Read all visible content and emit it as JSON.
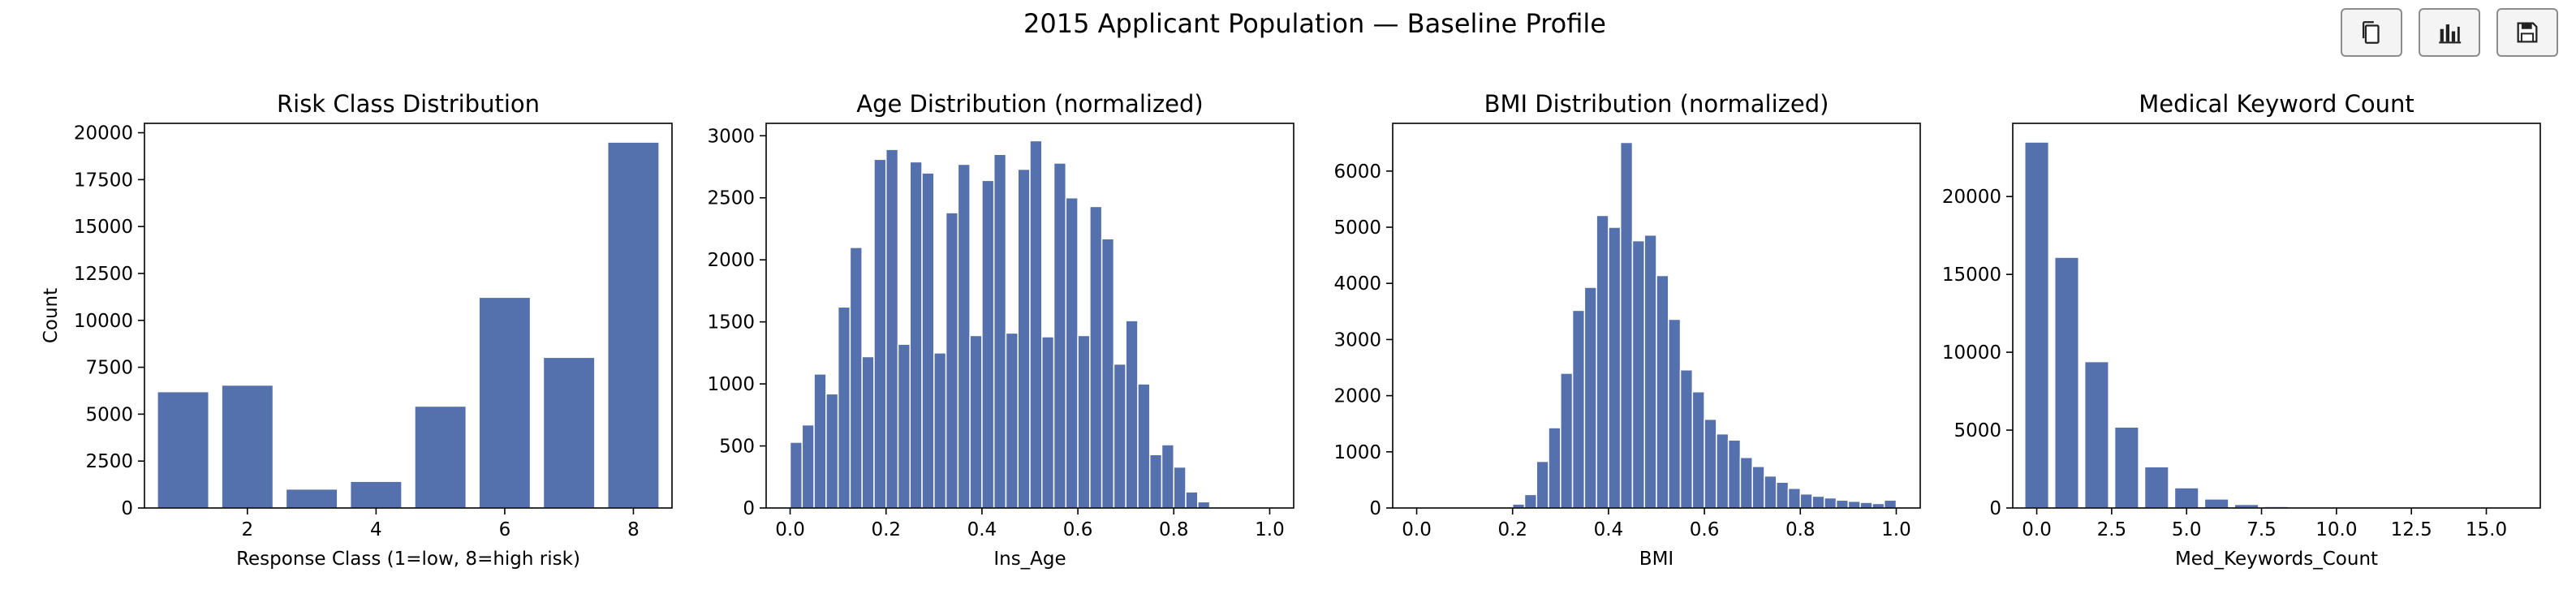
{
  "figure_title": "2015 Applicant Population — Baseline Profile",
  "toolbar": {
    "buttons": [
      {
        "name": "copy-button",
        "icon": "copy-icon"
      },
      {
        "name": "chart-button",
        "icon": "bar-chart-icon"
      },
      {
        "name": "save-button",
        "icon": "save-icon"
      }
    ]
  },
  "colors": {
    "bar": "#5470ad",
    "bar_edge": "#ffffff",
    "axis": "#000000",
    "toolbar_border": "#8c8c8c"
  },
  "chart_data": [
    {
      "type": "bar",
      "title": "Risk Class Distribution",
      "xlabel": "Response Class (1=low, 8=high risk)",
      "ylabel": "Count",
      "x": [
        1,
        2,
        3,
        4,
        5,
        6,
        7,
        8
      ],
      "values": [
        6200,
        6550,
        1010,
        1420,
        5430,
        11230,
        8030,
        19500
      ],
      "bar_width": 0.8,
      "xlim": [
        0.4,
        8.6
      ],
      "ylim": [
        0,
        20500
      ],
      "xticks": [
        2,
        4,
        6,
        8
      ],
      "xtick_labels": [
        "2",
        "4",
        "6",
        "8"
      ],
      "yticks": [
        0,
        2500,
        5000,
        7500,
        10000,
        12500,
        15000,
        17500,
        20000
      ],
      "ytick_labels": [
        "0",
        "2500",
        "5000",
        "7500",
        "10000",
        "12500",
        "15000",
        "17500",
        "20000"
      ]
    },
    {
      "type": "bar",
      "title": "Age Distribution (normalized)",
      "xlabel": "Ins_Age",
      "ylabel": "",
      "x": [
        0.0125,
        0.0375,
        0.0625,
        0.0875,
        0.1125,
        0.1375,
        0.1625,
        0.1875,
        0.2125,
        0.2375,
        0.2625,
        0.2875,
        0.3125,
        0.3375,
        0.3625,
        0.3875,
        0.4125,
        0.4375,
        0.4625,
        0.4875,
        0.5125,
        0.5375,
        0.5625,
        0.5875,
        0.6125,
        0.6375,
        0.6625,
        0.6875,
        0.7125,
        0.7375,
        0.7625,
        0.7875,
        0.8125,
        0.8375,
        0.8625,
        0.8875,
        0.9125,
        0.9375,
        0.9625,
        0.9875
      ],
      "values": [
        530,
        670,
        1080,
        920,
        1620,
        2100,
        1220,
        2810,
        2890,
        1320,
        2790,
        2700,
        1250,
        2380,
        2770,
        1390,
        2640,
        2850,
        1410,
        2730,
        2960,
        1380,
        2780,
        2500,
        1390,
        2430,
        2170,
        1160,
        1510,
        1000,
        430,
        510,
        330,
        130,
        50,
        5,
        3,
        2,
        1,
        0
      ],
      "bar_width": 0.025,
      "xlim": [
        -0.05,
        1.05
      ],
      "ylim": [
        0,
        3100
      ],
      "xticks": [
        0,
        0.2,
        0.4,
        0.6,
        0.8,
        1.0
      ],
      "xtick_labels": [
        "0.0",
        "0.2",
        "0.4",
        "0.6",
        "0.8",
        "1.0"
      ],
      "yticks": [
        0,
        500,
        1000,
        1500,
        2000,
        2500,
        3000
      ],
      "ytick_labels": [
        "0",
        "500",
        "1000",
        "1500",
        "2000",
        "2500",
        "3000"
      ]
    },
    {
      "type": "bar",
      "title": "BMI Distribution (normalized)",
      "xlabel": "BMI",
      "ylabel": "",
      "x": [
        0.0125,
        0.0375,
        0.0625,
        0.0875,
        0.1125,
        0.1375,
        0.1625,
        0.1875,
        0.2125,
        0.2375,
        0.2625,
        0.2875,
        0.3125,
        0.3375,
        0.3625,
        0.3875,
        0.4125,
        0.4375,
        0.4625,
        0.4875,
        0.5125,
        0.5375,
        0.5625,
        0.5875,
        0.6125,
        0.6375,
        0.6625,
        0.6875,
        0.7125,
        0.7375,
        0.7625,
        0.7875,
        0.8125,
        0.8375,
        0.8625,
        0.8875,
        0.9125,
        0.9375,
        0.9625,
        0.9875
      ],
      "values": [
        5,
        0,
        0,
        0,
        0,
        0,
        0,
        0,
        70,
        240,
        830,
        1430,
        2400,
        3520,
        3930,
        5210,
        5000,
        6510,
        4760,
        4860,
        4140,
        3360,
        2460,
        2070,
        1580,
        1320,
        1210,
        900,
        740,
        570,
        460,
        350,
        250,
        210,
        180,
        140,
        120,
        100,
        80,
        140
      ],
      "bar_width": 0.025,
      "xlim": [
        -0.05,
        1.05
      ],
      "ylim": [
        0,
        6850
      ],
      "xticks": [
        0,
        0.2,
        0.4,
        0.6,
        0.8,
        1.0
      ],
      "xtick_labels": [
        "0.0",
        "0.2",
        "0.4",
        "0.6",
        "0.8",
        "1.0"
      ],
      "yticks": [
        0,
        1000,
        2000,
        3000,
        4000,
        5000,
        6000
      ],
      "ytick_labels": [
        "0",
        "1000",
        "2000",
        "3000",
        "4000",
        "5000",
        "6000"
      ]
    },
    {
      "type": "bar",
      "title": "Medical Keyword Count",
      "xlabel": "Med_Keywords_Count",
      "ylabel": "",
      "x": [
        0,
        1,
        2,
        3,
        4,
        5,
        6,
        7,
        8,
        9,
        10,
        11,
        12,
        13,
        14,
        15,
        16
      ],
      "values": [
        23500,
        16100,
        9400,
        5200,
        2650,
        1300,
        580,
        230,
        100,
        40,
        20,
        10,
        5,
        3,
        2,
        1,
        1
      ],
      "bar_width": 0.8,
      "xlim": [
        -0.8,
        16.8
      ],
      "ylim": [
        0,
        24700
      ],
      "xticks": [
        0,
        2.5,
        5,
        7.5,
        10,
        12.5,
        15
      ],
      "xtick_labels": [
        "0.0",
        "2.5",
        "5.0",
        "7.5",
        "10.0",
        "12.5",
        "15.0"
      ],
      "yticks": [
        0,
        5000,
        10000,
        15000,
        20000
      ],
      "ytick_labels": [
        "0",
        "5000",
        "10000",
        "15000",
        "20000"
      ]
    }
  ]
}
